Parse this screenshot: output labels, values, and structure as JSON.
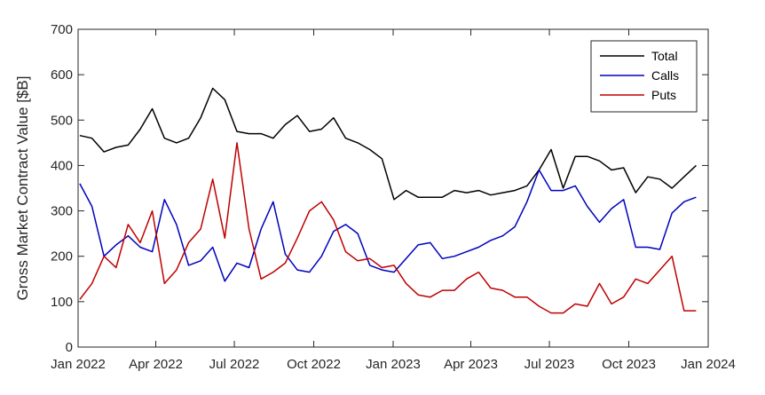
{
  "chart_data": {
    "type": "line",
    "title": "",
    "xlabel": "",
    "ylabel": "Gross Market Contract Value [$B]",
    "ylim": [
      0,
      700
    ],
    "xlim": [
      "2022-01-01",
      "2024-01-01"
    ],
    "yticks": [
      0,
      100,
      200,
      300,
      400,
      500,
      600,
      700
    ],
    "xticks": [
      {
        "date": "2022-01-01",
        "label": "Jan 2022"
      },
      {
        "date": "2022-04-01",
        "label": "Apr 2022"
      },
      {
        "date": "2022-07-01",
        "label": "Jul 2022"
      },
      {
        "date": "2022-10-01",
        "label": "Oct 2022"
      },
      {
        "date": "2023-01-01",
        "label": "Jan 2023"
      },
      {
        "date": "2023-04-01",
        "label": "Apr 2023"
      },
      {
        "date": "2023-07-01",
        "label": "Jul 2023"
      },
      {
        "date": "2023-10-01",
        "label": "Oct 2023"
      },
      {
        "date": "2024-01-01",
        "label": "Jan 2024"
      }
    ],
    "grid": false,
    "legend": "top-right",
    "x": [
      "2022-01-03",
      "2022-01-17",
      "2022-01-31",
      "2022-02-14",
      "2022-02-28",
      "2022-03-14",
      "2022-03-28",
      "2022-04-11",
      "2022-04-25",
      "2022-05-09",
      "2022-05-23",
      "2022-06-06",
      "2022-06-20",
      "2022-07-04",
      "2022-07-18",
      "2022-08-01",
      "2022-08-15",
      "2022-08-29",
      "2022-09-12",
      "2022-09-26",
      "2022-10-10",
      "2022-10-24",
      "2022-11-07",
      "2022-11-21",
      "2022-12-05",
      "2022-12-19",
      "2023-01-02",
      "2023-01-16",
      "2023-01-30",
      "2023-02-13",
      "2023-02-27",
      "2023-03-13",
      "2023-03-27",
      "2023-04-10",
      "2023-04-24",
      "2023-05-08",
      "2023-05-22",
      "2023-06-05",
      "2023-06-19",
      "2023-07-03",
      "2023-07-17",
      "2023-07-31",
      "2023-08-14",
      "2023-08-28",
      "2023-09-11",
      "2023-09-25",
      "2023-10-09",
      "2023-10-23",
      "2023-11-06",
      "2023-11-20",
      "2023-12-04",
      "2023-12-18"
    ],
    "series": [
      {
        "name": "Total",
        "color": "#000000",
        "values": [
          466,
          460,
          430,
          440,
          445,
          480,
          525,
          460,
          450,
          460,
          505,
          570,
          545,
          475,
          470,
          470,
          460,
          490,
          510,
          475,
          480,
          505,
          460,
          450,
          435,
          415,
          325,
          345,
          330,
          330,
          330,
          345,
          340,
          345,
          335,
          340,
          345,
          355,
          390,
          435,
          350,
          420,
          420,
          410,
          390,
          395,
          340,
          375,
          370,
          350,
          375,
          400
        ]
      },
      {
        "name": "Calls",
        "color": "#0000BF",
        "values": [
          360,
          310,
          200,
          225,
          245,
          220,
          210,
          325,
          270,
          180,
          190,
          220,
          145,
          185,
          175,
          260,
          320,
          205,
          170,
          165,
          200,
          255,
          270,
          250,
          180,
          170,
          165,
          195,
          225,
          230,
          195,
          200,
          210,
          220,
          235,
          245,
          265,
          320,
          390,
          345,
          345,
          355,
          310,
          275,
          305,
          325,
          220,
          220,
          215,
          295,
          320,
          330
        ]
      },
      {
        "name": "Puts",
        "color": "#BF0000",
        "values": [
          105,
          140,
          200,
          175,
          270,
          230,
          300,
          140,
          170,
          230,
          260,
          370,
          240,
          450,
          260,
          150,
          165,
          185,
          240,
          300,
          320,
          280,
          210,
          190,
          195,
          175,
          180,
          140,
          115,
          110,
          125,
          125,
          150,
          165,
          130,
          125,
          110,
          110,
          90,
          75,
          75,
          95,
          90,
          140,
          95,
          110,
          150,
          140,
          170,
          200,
          80,
          80
        ]
      }
    ]
  }
}
